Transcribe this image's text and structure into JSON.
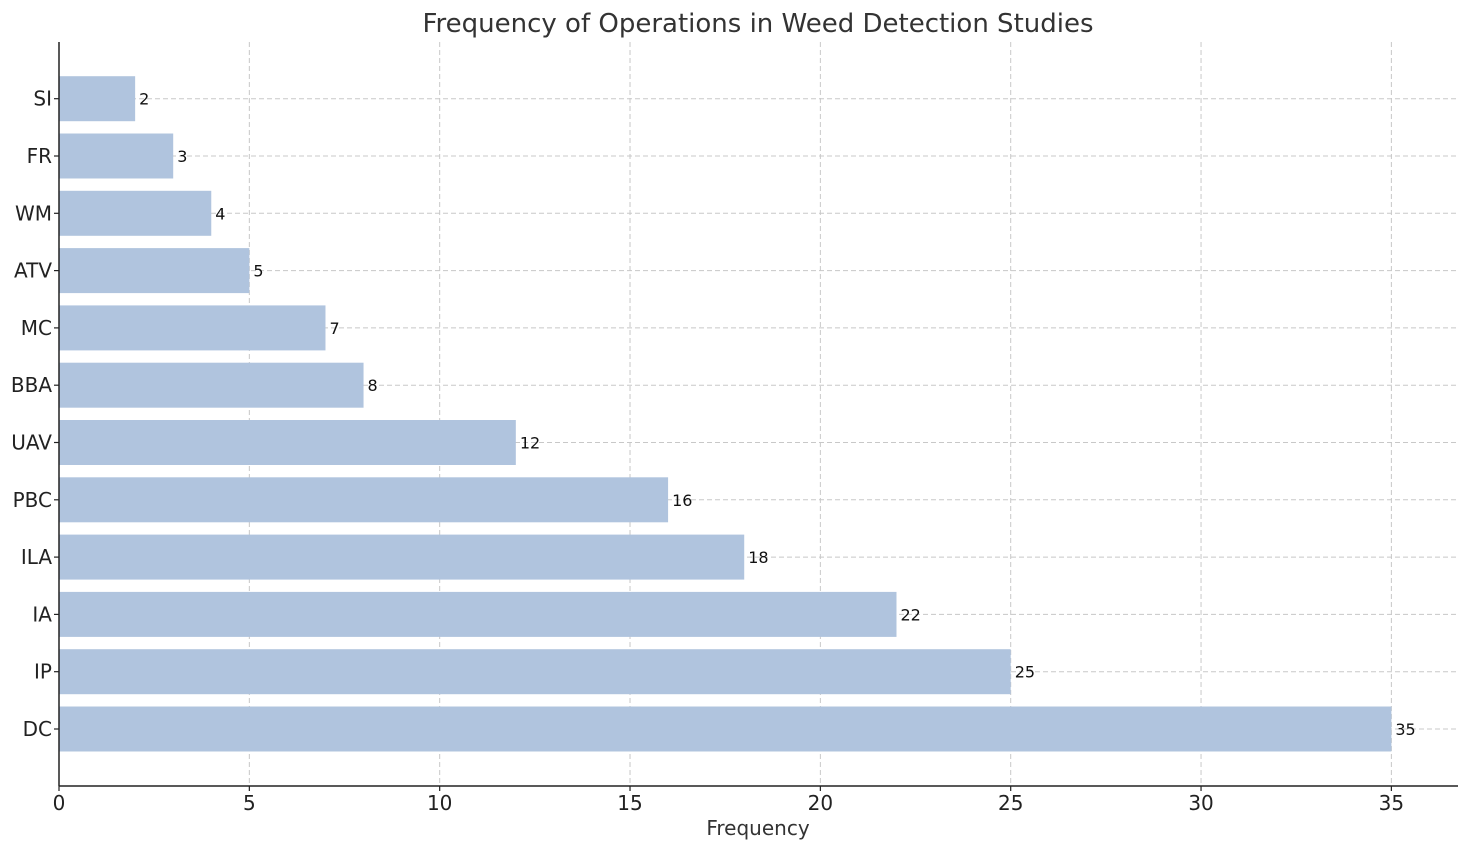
{
  "chart_data": {
    "type": "bar",
    "orientation": "horizontal",
    "title": "Frequency of Operations in Weed Detection Studies",
    "xlabel": "Frequency",
    "ylabel": "",
    "categories": [
      "DC",
      "IP",
      "IA",
      "ILA",
      "PBC",
      "UAV",
      "BBA",
      "MC",
      "ATV",
      "WM",
      "FR",
      "SI"
    ],
    "values": [
      35,
      25,
      22,
      18,
      16,
      12,
      8,
      7,
      5,
      4,
      3,
      2
    ],
    "xlim": [
      0,
      36.75
    ],
    "xticks": [
      0,
      5,
      10,
      15,
      20,
      25,
      30,
      35
    ],
    "grid": true,
    "legend": "none",
    "colors": {
      "bar": "#b0c4de",
      "grid": "#c8c8c8",
      "axis": "#222222",
      "text": "#333333"
    }
  }
}
